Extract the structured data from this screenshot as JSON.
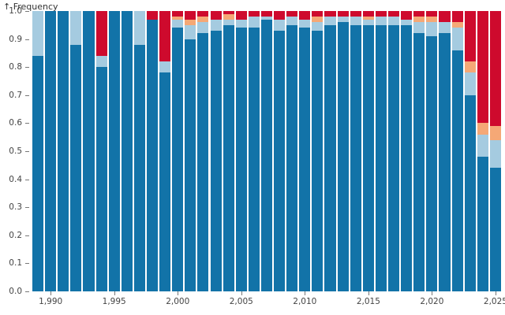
{
  "chart": {
    "y_axis_title": "↑ Frequency"
  },
  "chart_data": {
    "type": "bar",
    "stacked": true,
    "title": "",
    "xlabel": "",
    "ylabel": "Frequency",
    "ylim": [
      0.0,
      1.0
    ],
    "grid": false,
    "legend": "none",
    "x_years": [
      1989,
      1990,
      1991,
      1992,
      1993,
      1994,
      1995,
      1996,
      1997,
      1998,
      1999,
      2000,
      2001,
      2002,
      2003,
      2004,
      2005,
      2006,
      2007,
      2008,
      2009,
      2010,
      2011,
      2012,
      2013,
      2014,
      2015,
      2016,
      2017,
      2018,
      2019,
      2020,
      2021,
      2022,
      2023,
      2024,
      2025
    ],
    "x_tick_years": [
      1990,
      1995,
      2000,
      2005,
      2010,
      2015,
      2020,
      2025
    ],
    "x_tick_labels": [
      "1,990",
      "1,995",
      "2,000",
      "2,005",
      "2,010",
      "2,015",
      "2,020",
      "2,025"
    ],
    "y_tick_labels": [
      "0.0",
      "0.1",
      "0.2",
      "0.3",
      "0.4",
      "0.5",
      "0.6",
      "0.7",
      "0.8",
      "0.9",
      "1.0"
    ],
    "series": [
      {
        "name": "dark-blue",
        "color": "#1273a8",
        "values": [
          0.84,
          1.0,
          1.0,
          0.88,
          1.0,
          0.8,
          1.0,
          1.0,
          0.88,
          0.97,
          0.78,
          0.94,
          0.9,
          0.92,
          0.93,
          0.95,
          0.94,
          0.94,
          0.97,
          0.93,
          0.95,
          0.94,
          0.93,
          0.95,
          0.96,
          0.95,
          0.95,
          0.95,
          0.95,
          0.95,
          0.92,
          0.91,
          0.92,
          0.86,
          0.7,
          0.48,
          0.44
        ]
      },
      {
        "name": "light-blue",
        "color": "#a5cbe0",
        "values": [
          0.16,
          0,
          0,
          0.12,
          0,
          0.04,
          0,
          0,
          0.12,
          0,
          0.04,
          0.03,
          0.05,
          0.04,
          0.04,
          0.02,
          0.03,
          0.04,
          0.01,
          0.04,
          0.03,
          0.03,
          0.03,
          0.03,
          0.02,
          0.03,
          0.02,
          0.03,
          0.03,
          0.02,
          0.04,
          0.05,
          0.04,
          0.08,
          0.08,
          0.08,
          0.1
        ]
      },
      {
        "name": "orange",
        "color": "#f5a876",
        "values": [
          0,
          0,
          0,
          0,
          0,
          0,
          0,
          0,
          0,
          0,
          0,
          0.01,
          0.02,
          0.02,
          0,
          0.02,
          0,
          0,
          0,
          0,
          0,
          0,
          0.02,
          0,
          0,
          0,
          0.01,
          0,
          0,
          0,
          0.02,
          0.02,
          0,
          0.02,
          0.04,
          0.04,
          0.05
        ]
      },
      {
        "name": "red",
        "color": "#ce0a2d",
        "values": [
          0,
          0,
          0,
          0,
          0,
          0.16,
          0,
          0,
          0,
          0.03,
          0.18,
          0.02,
          0.03,
          0.02,
          0.03,
          0.01,
          0.03,
          0.02,
          0.02,
          0.03,
          0.02,
          0.03,
          0.02,
          0.02,
          0.02,
          0.02,
          0.02,
          0.02,
          0.02,
          0.03,
          0.02,
          0.02,
          0.04,
          0.04,
          0.18,
          0.4,
          0.41
        ]
      }
    ]
  }
}
